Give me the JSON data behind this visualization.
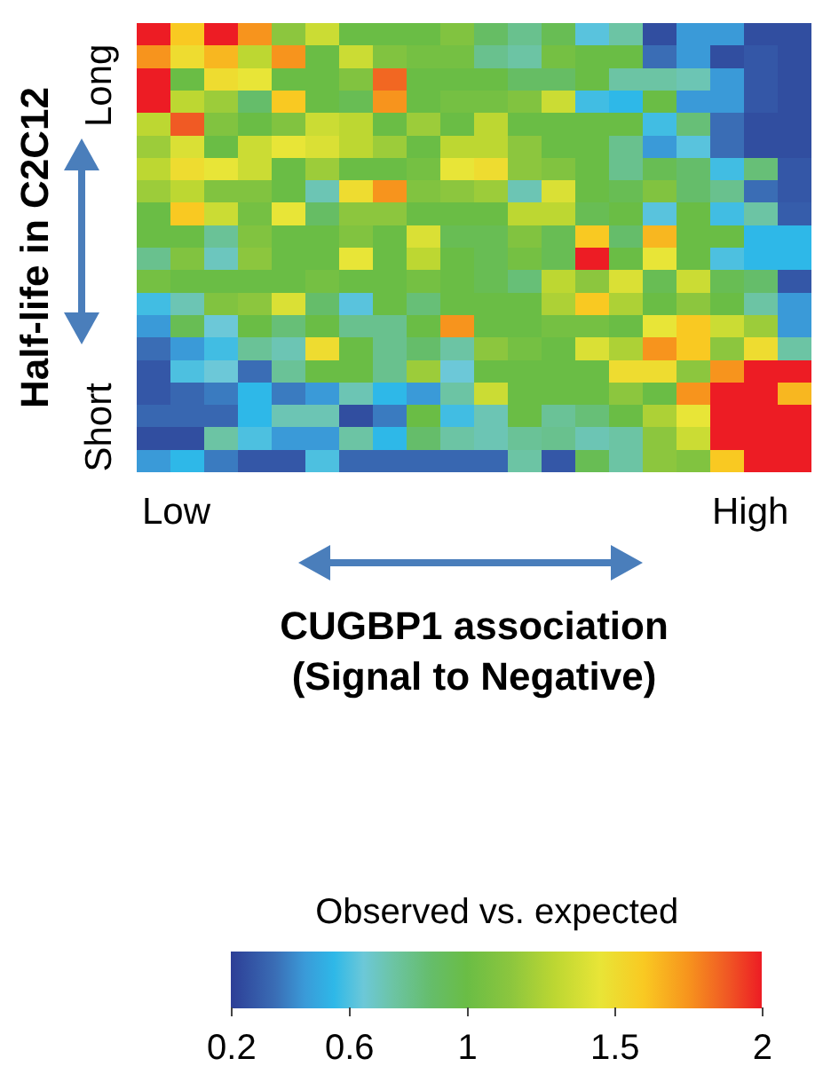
{
  "chart_data": {
    "type": "heatmap",
    "xlabel": "CUGBP1 association\n(Signal to Negative)",
    "ylabel": "Half-life in C2C12",
    "clabel": "Observed vs. expected",
    "annotations": [
      "Low",
      "High",
      "Long",
      "Short"
    ],
    "categories": [
      null,
      null,
      null,
      null,
      null,
      null,
      null,
      null,
      null,
      null,
      null,
      null,
      null,
      null,
      null,
      null,
      null,
      null,
      null,
      null
    ],
    "y_categories": [
      null,
      null,
      null,
      null,
      null,
      null,
      null,
      null,
      null,
      null,
      null,
      null,
      null,
      null,
      null,
      null,
      null,
      null,
      null,
      null
    ],
    "clim": [
      0.2,
      2
    ],
    "cticks": [
      0.2,
      0.6,
      1,
      1.5,
      2
    ],
    "cells": [
      [
        2.0,
        1.6,
        2.0,
        1.75,
        1.15,
        1.35,
        1.0,
        1.0,
        1.0,
        1.1,
        0.9,
        0.8,
        0.95,
        0.62,
        0.75,
        0.25,
        0.45,
        0.45,
        0.25,
        0.25
      ],
      [
        1.75,
        1.5,
        1.65,
        1.3,
        1.75,
        1.0,
        1.35,
        1.1,
        1.05,
        1.05,
        0.8,
        0.75,
        1.05,
        1.0,
        1.0,
        0.35,
        0.45,
        0.25,
        0.28,
        0.25
      ],
      [
        2.0,
        1.0,
        1.5,
        1.45,
        1.0,
        1.0,
        1.1,
        1.85,
        1.0,
        1.0,
        1.0,
        0.9,
        0.9,
        1.0,
        0.75,
        0.75,
        0.72,
        0.45,
        0.28,
        0.25
      ],
      [
        2.0,
        1.3,
        1.2,
        0.88,
        1.6,
        1.0,
        0.95,
        1.75,
        1.0,
        1.05,
        1.05,
        1.1,
        1.35,
        0.58,
        0.55,
        1.0,
        0.45,
        0.45,
        0.28,
        0.25
      ],
      [
        1.3,
        1.88,
        1.1,
        1.0,
        1.1,
        1.35,
        1.3,
        1.0,
        1.2,
        1.0,
        1.3,
        1.0,
        1.0,
        1.0,
        1.0,
        0.58,
        0.85,
        0.35,
        0.25,
        0.25
      ],
      [
        1.2,
        1.4,
        1.0,
        1.35,
        1.45,
        1.4,
        1.3,
        1.2,
        1.0,
        1.3,
        1.3,
        1.15,
        1.0,
        1.0,
        0.8,
        0.45,
        0.62,
        0.35,
        0.25,
        0.25
      ],
      [
        1.3,
        1.5,
        1.45,
        1.35,
        1.0,
        1.2,
        1.0,
        1.0,
        1.05,
        1.45,
        1.5,
        1.15,
        1.1,
        1.0,
        0.8,
        0.95,
        0.88,
        0.58,
        0.85,
        0.28
      ],
      [
        1.2,
        1.3,
        1.1,
        1.1,
        1.0,
        0.72,
        1.5,
        1.75,
        1.1,
        1.15,
        1.2,
        0.72,
        1.4,
        1.0,
        0.95,
        1.1,
        0.88,
        0.8,
        0.35,
        0.28
      ],
      [
        1.0,
        1.6,
        1.35,
        1.05,
        1.45,
        0.9,
        1.15,
        1.15,
        1.0,
        1.0,
        1.0,
        1.3,
        1.3,
        0.95,
        1.0,
        0.62,
        1.0,
        0.58,
        0.75,
        0.3
      ],
      [
        1.0,
        1.0,
        0.78,
        1.1,
        1.0,
        1.0,
        1.1,
        1.0,
        1.4,
        0.95,
        0.95,
        1.1,
        0.95,
        1.6,
        0.88,
        1.65,
        1.0,
        1.0,
        0.55,
        0.55
      ],
      [
        0.8,
        1.1,
        0.7,
        1.15,
        1.0,
        1.0,
        1.45,
        1.0,
        1.3,
        1.0,
        0.95,
        1.05,
        0.95,
        2.0,
        1.0,
        1.45,
        1.0,
        0.6,
        0.55,
        0.55
      ],
      [
        1.05,
        1.0,
        1.0,
        1.0,
        1.0,
        1.05,
        1.0,
        1.0,
        1.05,
        1.0,
        0.95,
        0.85,
        1.3,
        1.15,
        1.4,
        0.95,
        1.35,
        0.95,
        0.88,
        0.28
      ],
      [
        0.58,
        0.72,
        1.1,
        1.15,
        1.4,
        0.88,
        0.62,
        1.0,
        0.85,
        1.0,
        1.0,
        1.0,
        1.25,
        1.6,
        1.25,
        1.0,
        1.15,
        1.0,
        0.75,
        0.45
      ],
      [
        0.45,
        0.95,
        0.65,
        1.0,
        0.85,
        1.0,
        0.8,
        0.8,
        1.0,
        1.75,
        1.0,
        1.0,
        1.05,
        1.05,
        1.0,
        1.45,
        1.6,
        1.35,
        1.2,
        0.45
      ],
      [
        0.35,
        0.45,
        0.58,
        0.78,
        0.72,
        1.5,
        1.0,
        0.8,
        0.88,
        0.75,
        1.15,
        1.05,
        1.0,
        1.4,
        1.25,
        1.75,
        1.6,
        1.15,
        1.5,
        0.75
      ],
      [
        0.28,
        0.6,
        0.65,
        0.35,
        0.78,
        1.0,
        1.0,
        0.8,
        1.2,
        0.65,
        1.0,
        1.0,
        1.0,
        1.0,
        1.5,
        1.5,
        1.15,
        1.75,
        2.0,
        2.0
      ],
      [
        0.28,
        0.33,
        0.38,
        0.55,
        0.38,
        0.45,
        0.72,
        0.55,
        0.45,
        0.75,
        1.35,
        1.0,
        1.0,
        1.0,
        1.15,
        1.0,
        1.75,
        2.0,
        2.0,
        1.65
      ],
      [
        0.33,
        0.33,
        0.33,
        0.55,
        0.72,
        0.72,
        0.25,
        0.38,
        1.0,
        0.58,
        0.72,
        1.0,
        0.78,
        0.85,
        1.0,
        1.25,
        1.45,
        2.0,
        2.0,
        2.0
      ],
      [
        0.25,
        0.25,
        0.75,
        0.6,
        0.45,
        0.45,
        0.75,
        0.55,
        0.88,
        0.75,
        0.72,
        0.78,
        0.8,
        0.72,
        0.75,
        1.15,
        1.35,
        2.0,
        2.0,
        2.0
      ],
      [
        0.45,
        0.55,
        0.38,
        0.28,
        0.28,
        0.6,
        0.33,
        0.33,
        0.33,
        0.33,
        0.33,
        0.75,
        0.28,
        0.95,
        0.75,
        1.15,
        1.1,
        1.6,
        2.0,
        2.0
      ]
    ]
  }
}
